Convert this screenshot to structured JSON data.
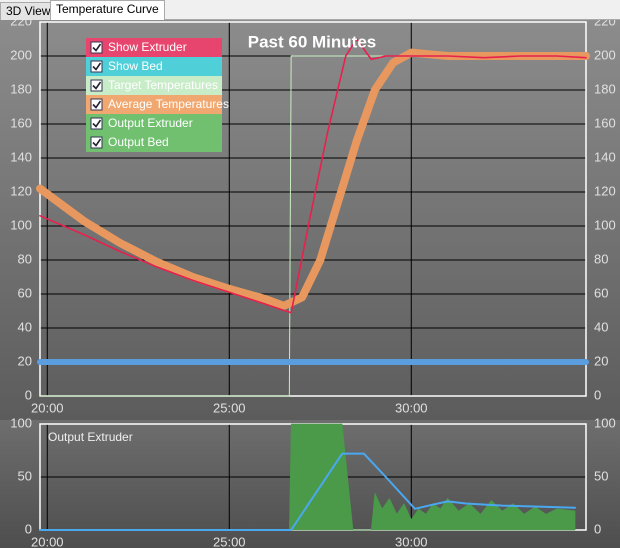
{
  "tabs": [
    "3D View",
    "Temperature Curve"
  ],
  "chart_data": [
    {
      "type": "line",
      "title": "Past 60 Minutes",
      "xlim": [
        19.8,
        34.8
      ],
      "xticks": [
        {
          "value": 20,
          "label": "20:00"
        },
        {
          "value": 25,
          "label": "25:00"
        },
        {
          "value": 30,
          "label": "30:00"
        }
      ],
      "ylim": [
        0,
        220
      ],
      "yticks": [
        0,
        20,
        40,
        60,
        80,
        100,
        120,
        140,
        160,
        180,
        200,
        220
      ],
      "grid": true,
      "legend": [
        {
          "name": "Show Extruder",
          "color": "#e8456e",
          "checked": true
        },
        {
          "name": "Show Bed",
          "color": "#4fd0d8",
          "checked": true
        },
        {
          "name": "Target Temperatures",
          "color": "#c8ecc8",
          "checked": true
        },
        {
          "name": "Average Temperatures",
          "color": "#f0a870",
          "checked": true
        },
        {
          "name": "Output Extruder",
          "color": "#70c070",
          "checked": true
        },
        {
          "name": "Output Bed",
          "color": "#70c070",
          "checked": true
        }
      ],
      "series": [
        {
          "color": "#c8eec0",
          "width": 1,
          "x": [
            19.8,
            26.65,
            26.7,
            34.8
          ],
          "values": [
            0,
            0,
            200,
            200
          ]
        },
        {
          "color": "#5a9ee0",
          "width": 6,
          "x": [
            19.8,
            34.8
          ],
          "values": [
            20,
            20
          ]
        },
        {
          "color": "#e8985e",
          "width": 8,
          "x": [
            19.8,
            21,
            22,
            23,
            24,
            25,
            26,
            26.5,
            27,
            27.5,
            28,
            28.5,
            29,
            29.5,
            30,
            30.5,
            31,
            32,
            33,
            34,
            34.8
          ],
          "values": [
            122,
            103,
            90,
            79,
            70,
            63,
            57,
            53,
            58,
            80,
            115,
            150,
            180,
            196,
            202,
            201,
            200,
            200,
            200,
            200,
            200
          ]
        },
        {
          "color": "#e8204e",
          "width": 1.6,
          "x": [
            19.8,
            21,
            22,
            23,
            24,
            25,
            26,
            26.7,
            27.2,
            27.7,
            28.2,
            28.5,
            28.9,
            29.3,
            29.7,
            30,
            31,
            32,
            33,
            34,
            34.8
          ],
          "values": [
            106,
            95,
            85,
            76,
            68,
            61,
            54,
            49,
            103,
            155,
            200,
            210,
            198,
            200,
            200,
            200,
            200,
            199,
            200,
            200,
            199
          ]
        }
      ]
    },
    {
      "type": "line",
      "title": "Output Extruder",
      "xlim": [
        19.8,
        34.8
      ],
      "xticks": [
        {
          "value": 20,
          "label": "20:00"
        },
        {
          "value": 25,
          "label": "25:00"
        },
        {
          "value": 30,
          "label": "30:00"
        }
      ],
      "ylim": [
        0,
        100
      ],
      "yticks": [
        0,
        50,
        100
      ],
      "grid": true,
      "series": [
        {
          "kind": "area",
          "color": "#4a9a4a",
          "x": [
            19.8,
            26.65,
            26.7,
            28.1,
            28.4,
            28.9,
            29.0,
            29.2,
            29.4,
            29.6,
            29.8,
            30.0,
            30.2,
            30.4,
            30.6,
            30.8,
            31.0,
            31.3,
            31.6,
            31.9,
            32.2,
            32.5,
            32.8,
            33.1,
            33.4,
            33.7,
            34.0,
            34.5
          ],
          "values": [
            0,
            0,
            100,
            100,
            0,
            0,
            35,
            20,
            30,
            15,
            25,
            10,
            20,
            15,
            25,
            20,
            30,
            18,
            25,
            15,
            28,
            18,
            25,
            15,
            22,
            15,
            20,
            18
          ]
        },
        {
          "kind": "line",
          "color": "#4aa8f0",
          "width": 2,
          "x": [
            19.8,
            26.7,
            28.1,
            28.7,
            29.3,
            30.1,
            30.6,
            31.0,
            31.5,
            32.5,
            33.5,
            34.5
          ],
          "values": [
            0,
            0,
            72,
            72,
            50,
            20,
            24,
            27,
            25,
            23,
            22,
            21
          ]
        }
      ]
    }
  ]
}
